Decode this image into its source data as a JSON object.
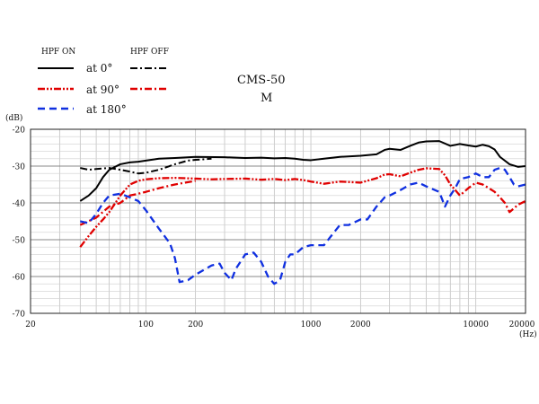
{
  "legend": {
    "hpf_on_label": "HPF  ON",
    "hpf_off_label": "HPF  OFF",
    "items": [
      {
        "label": "at 0°",
        "color": "#000000"
      },
      {
        "label": "at 90°",
        "color": "#e00000"
      },
      {
        "label": "at 180°",
        "color": "#1030e0"
      }
    ]
  },
  "chart_data": {
    "type": "line",
    "title": "CMS-50",
    "subtitle": "M",
    "xlabel": "(Hz)",
    "ylabel": "(dB)",
    "xscale": "log",
    "xlim": [
      20,
      20000
    ],
    "ylim": [
      -70,
      -20
    ],
    "x_ticks": [
      20,
      100,
      200,
      1000,
      2000,
      10000,
      20000
    ],
    "y_ticks": [
      -20,
      -30,
      -40,
      -50,
      -60,
      -70
    ],
    "grid": true,
    "legend_position": "top-left",
    "series": [
      {
        "name": "at 0°",
        "filter": "HPF ON",
        "style": "solid",
        "color": "#000000",
        "points": [
          [
            40,
            -39.5
          ],
          [
            45,
            -38
          ],
          [
            50,
            -36
          ],
          [
            55,
            -33
          ],
          [
            60,
            -31
          ],
          [
            70,
            -29.5
          ],
          [
            80,
            -29
          ],
          [
            90,
            -28.8
          ],
          [
            100,
            -28.5
          ],
          [
            120,
            -28
          ],
          [
            150,
            -27.8
          ],
          [
            200,
            -27.5
          ],
          [
            300,
            -27.6
          ],
          [
            400,
            -27.8
          ],
          [
            500,
            -27.7
          ],
          [
            600,
            -27.9
          ],
          [
            700,
            -27.8
          ],
          [
            800,
            -28
          ],
          [
            900,
            -28.3
          ],
          [
            1000,
            -28.4
          ],
          [
            1200,
            -28
          ],
          [
            1500,
            -27.5
          ],
          [
            2000,
            -27.2
          ],
          [
            2500,
            -26.8
          ],
          [
            2800,
            -25.6
          ],
          [
            3000,
            -25.3
          ],
          [
            3500,
            -25.6
          ],
          [
            4000,
            -24.5
          ],
          [
            4500,
            -23.6
          ],
          [
            5000,
            -23.3
          ],
          [
            6000,
            -23.2
          ],
          [
            7000,
            -24.5
          ],
          [
            8000,
            -24
          ],
          [
            9000,
            -24.4
          ],
          [
            10000,
            -24.7
          ],
          [
            11000,
            -24.2
          ],
          [
            12000,
            -24.6
          ],
          [
            13000,
            -25.5
          ],
          [
            14000,
            -27.5
          ],
          [
            16000,
            -29.5
          ],
          [
            18000,
            -30.2
          ],
          [
            20000,
            -30
          ]
        ]
      },
      {
        "name": "at 0°",
        "filter": "HPF OFF",
        "style": "dash-dot",
        "color": "#000000",
        "points": [
          [
            40,
            -30.5
          ],
          [
            45,
            -31
          ],
          [
            50,
            -30.8
          ],
          [
            60,
            -30.5
          ],
          [
            70,
            -31
          ],
          [
            80,
            -31.5
          ],
          [
            90,
            -32
          ],
          [
            100,
            -31.8
          ],
          [
            120,
            -31
          ],
          [
            150,
            -29.5
          ],
          [
            180,
            -28.5
          ],
          [
            200,
            -28.3
          ],
          [
            250,
            -28
          ]
        ]
      },
      {
        "name": "at 90°",
        "filter": "HPF ON",
        "style": "dash-dot-dot",
        "color": "#e00000",
        "points": [
          [
            40,
            -52
          ],
          [
            45,
            -49
          ],
          [
            50,
            -46.5
          ],
          [
            55,
            -44.5
          ],
          [
            60,
            -42.5
          ],
          [
            70,
            -38
          ],
          [
            80,
            -35
          ],
          [
            90,
            -34
          ],
          [
            100,
            -33.6
          ],
          [
            120,
            -33.3
          ],
          [
            150,
            -33.2
          ],
          [
            200,
            -33.4
          ],
          [
            250,
            -33.6
          ],
          [
            300,
            -33.5
          ],
          [
            400,
            -33.4
          ],
          [
            500,
            -33.7
          ],
          [
            600,
            -33.5
          ],
          [
            700,
            -33.8
          ],
          [
            800,
            -33.5
          ],
          [
            900,
            -33.8
          ],
          [
            1000,
            -34.2
          ],
          [
            1200,
            -34.8
          ],
          [
            1500,
            -34.2
          ],
          [
            2000,
            -34.5
          ],
          [
            2500,
            -33.3
          ],
          [
            2800,
            -32.3
          ],
          [
            3000,
            -32.2
          ],
          [
            3500,
            -32.8
          ],
          [
            4000,
            -31.8
          ],
          [
            4500,
            -31
          ],
          [
            5000,
            -30.6
          ],
          [
            6000,
            -30.8
          ],
          [
            6500,
            -32.5
          ],
          [
            7000,
            -35
          ],
          [
            7500,
            -36.5
          ]
        ]
      },
      {
        "name": "at 90°",
        "filter": "HPF OFF",
        "style": "dash-dot",
        "color": "#e00000",
        "points": [
          [
            40,
            -46
          ],
          [
            50,
            -44
          ],
          [
            60,
            -41
          ],
          [
            70,
            -40
          ],
          [
            80,
            -38
          ],
          [
            90,
            -37.5
          ],
          [
            100,
            -37
          ],
          [
            120,
            -36
          ],
          [
            150,
            -35
          ],
          [
            200,
            -34
          ]
        ]
      },
      {
        "name": "at 90°",
        "filter": "HPF OFF",
        "style": "dash-dot",
        "color": "#e00000",
        "points": [
          [
            7500,
            -36.5
          ],
          [
            8000,
            -38
          ],
          [
            9000,
            -36
          ],
          [
            10000,
            -34.5
          ],
          [
            11000,
            -35
          ],
          [
            12000,
            -36
          ],
          [
            13000,
            -37
          ],
          [
            14000,
            -38.5
          ],
          [
            15000,
            -40
          ],
          [
            16000,
            -42.5
          ],
          [
            17000,
            -41.5
          ],
          [
            18000,
            -40.5
          ],
          [
            20000,
            -39.5
          ]
        ]
      },
      {
        "name": "at 180°",
        "filter": "HPF ON",
        "style": "dash",
        "color": "#1030e0",
        "points": [
          [
            40,
            -45
          ],
          [
            45,
            -45.5
          ],
          [
            50,
            -43
          ],
          [
            55,
            -40
          ],
          [
            60,
            -38
          ],
          [
            70,
            -37.5
          ],
          [
            80,
            -38.5
          ],
          [
            90,
            -39.5
          ],
          [
            100,
            -42
          ],
          [
            120,
            -47
          ],
          [
            140,
            -51
          ],
          [
            150,
            -55
          ],
          [
            160,
            -61.5
          ],
          [
            180,
            -61
          ],
          [
            200,
            -59.5
          ],
          [
            250,
            -57
          ],
          [
            280,
            -56.5
          ],
          [
            300,
            -59
          ],
          [
            330,
            -61
          ],
          [
            350,
            -58
          ],
          [
            400,
            -54
          ],
          [
            450,
            -53.5
          ],
          [
            500,
            -56
          ],
          [
            550,
            -60
          ],
          [
            600,
            -62
          ],
          [
            650,
            -61
          ],
          [
            700,
            -56
          ],
          [
            750,
            -54
          ],
          [
            800,
            -54
          ],
          [
            900,
            -52
          ],
          [
            1000,
            -51.5
          ],
          [
            1200,
            -51.5
          ],
          [
            1300,
            -49.5
          ],
          [
            1500,
            -46
          ],
          [
            1700,
            -46
          ],
          [
            2000,
            -44.5
          ],
          [
            2200,
            -44.5
          ],
          [
            2500,
            -41
          ],
          [
            2800,
            -38.5
          ],
          [
            3000,
            -38
          ],
          [
            3500,
            -36.5
          ],
          [
            4000,
            -35
          ],
          [
            4500,
            -34.5
          ],
          [
            5000,
            -35.5
          ],
          [
            6000,
            -37
          ],
          [
            6500,
            -41
          ],
          [
            7000,
            -38
          ],
          [
            7500,
            -36
          ],
          [
            8000,
            -33.5
          ],
          [
            9000,
            -33
          ],
          [
            10000,
            -32
          ],
          [
            11000,
            -33
          ],
          [
            12000,
            -33
          ],
          [
            13000,
            -31
          ],
          [
            14000,
            -30.5
          ],
          [
            15000,
            -31
          ],
          [
            16000,
            -33
          ],
          [
            17000,
            -35
          ],
          [
            18000,
            -35.5
          ],
          [
            20000,
            -35
          ]
        ]
      }
    ]
  }
}
